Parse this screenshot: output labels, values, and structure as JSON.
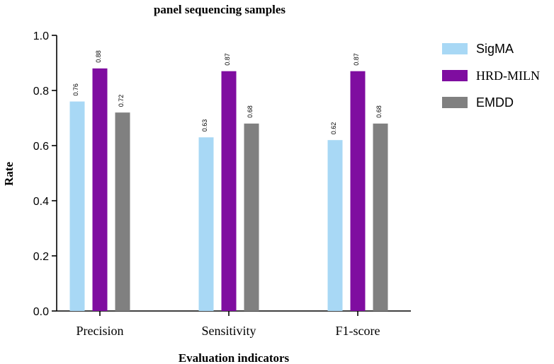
{
  "chart_data": {
    "type": "bar",
    "title": "panel sequencing samples",
    "xlabel": "Evaluation indicators",
    "ylabel": "Rate",
    "ylim": [
      0,
      1.0
    ],
    "yticks": [
      "0.0",
      "0.2",
      "0.4",
      "0.6",
      "0.8",
      "1.0"
    ],
    "categories": [
      "Precision",
      "Sensitivity",
      "F1-score"
    ],
    "series": [
      {
        "name": "SigMA",
        "color": "#a8d8f5",
        "values": [
          0.76,
          0.63,
          0.62
        ],
        "labels": [
          "0.76",
          "0.63",
          "0.62"
        ]
      },
      {
        "name": "HRD-MILN",
        "color": "#7f0da0",
        "values": [
          0.88,
          0.87,
          0.87
        ],
        "labels": [
          "0.88",
          "0.87",
          "0.87"
        ]
      },
      {
        "name": "EMDD",
        "color": "#808080",
        "values": [
          0.72,
          0.68,
          0.68
        ],
        "labels": [
          "0.72",
          "0.68",
          "0.68"
        ]
      }
    ],
    "legend_position": "right"
  }
}
